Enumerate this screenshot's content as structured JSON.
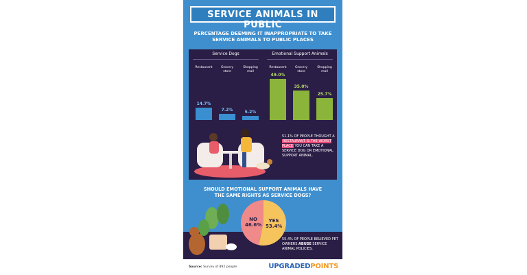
{
  "title": "SERVICE ANIMALS IN PUBLIC",
  "subtitle_line1": "PERCENTAGE DEEMING IT INAPPROPRIATE TO TAKE",
  "subtitle_line2": "SERVICE ANIMALS TO PUBLIC PLACES",
  "colors": {
    "poster_bg": "#3f8fcf",
    "panel_bg": "#2a1e46",
    "blue_bar": "#3a8fd1",
    "green_bar": "#8bb43a",
    "pie_no": "#f08a8a",
    "pie_yes": "#f6c45c",
    "highlight": "#e84c79"
  },
  "chart_data": [
    {
      "type": "bar",
      "title": "Service Dogs",
      "categories": [
        "Restaurant",
        "Grocery store",
        "Shopping mall"
      ],
      "values": [
        14.7,
        7.2,
        5.2
      ],
      "value_labels": [
        "14.7%",
        "7.2%",
        "5.2%"
      ]
    },
    {
      "type": "bar",
      "title": "Emotional Support Animals",
      "categories": [
        "Restaurant",
        "Grocery store",
        "Shopping mall"
      ],
      "values": [
        49.0,
        35.0,
        25.7
      ],
      "value_labels": [
        "49.0%",
        "35.0%",
        "25.7%"
      ]
    },
    {
      "type": "pie",
      "title": "SHOULD EMOTIONAL SUPPORT ANIMALS HAVE THE SAME RIGHTS AS SERVICE DOGS?",
      "categories": [
        "NO",
        "YES"
      ],
      "values": [
        46.6,
        53.4
      ],
      "value_labels": [
        "46.6%",
        "53.4%"
      ]
    }
  ],
  "callout": {
    "pre": "51.1% OF PEOPLE THOUGHT A ",
    "highlight": "RESTAURANT IS THE WORST PLACE",
    "post": " YOU CAN TAKE A SERVICE DOG OR EMOTIONAL SUPPORT ANIMAL."
  },
  "question_line1": "SHOULD EMOTIONAL SUPPORT ANIMALS HAVE",
  "question_line2": "THE SAME RIGHTS AS SERVICE DOGS?",
  "abuse_note": {
    "pre": "55.4% OF PEOPLE BELIEVED PET OWNERS ",
    "bold": "ABUSE",
    "post": " SERVICE ANIMAL POLICIES."
  },
  "source_label": "Source:",
  "source_text": "Survey of 892 people",
  "brand_a": "UPGRADED",
  "brand_b": "POINTS"
}
